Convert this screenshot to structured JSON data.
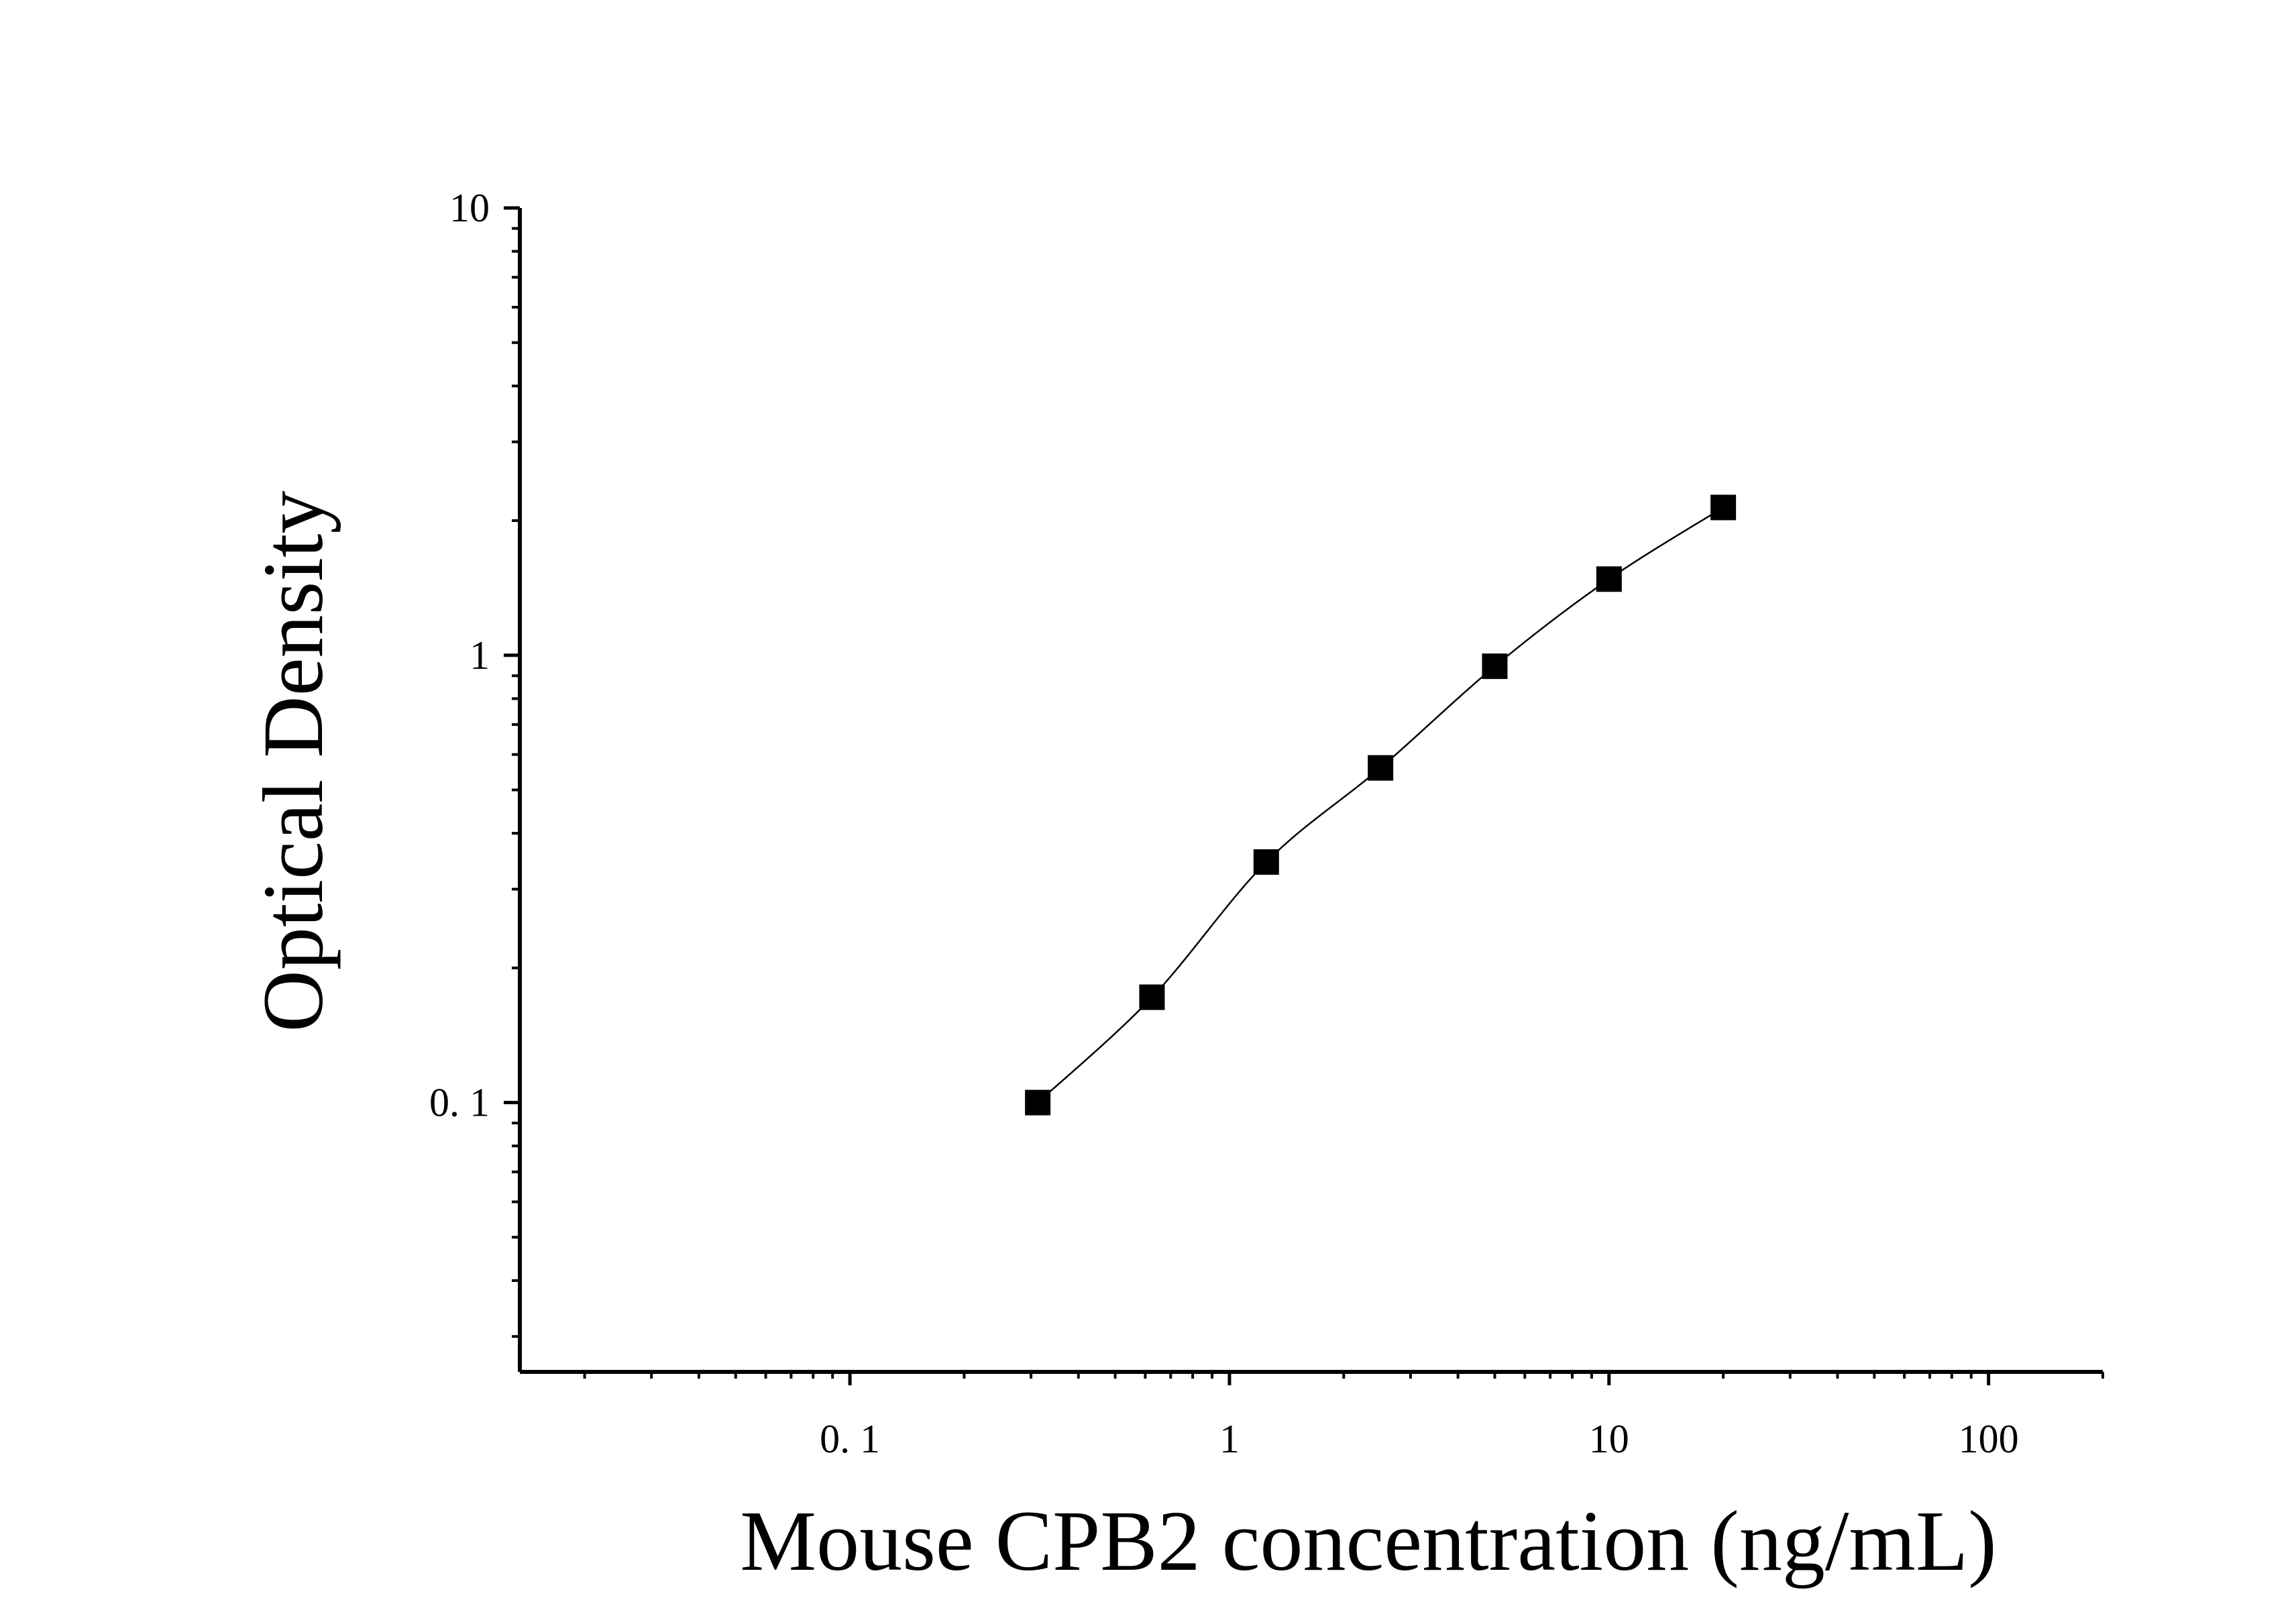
{
  "chart_data": {
    "type": "scatter",
    "title": "",
    "xlabel": "Mouse CPB2 concentration (ng/mL)",
    "ylabel": "Optical Density",
    "xscale": "log",
    "yscale": "log",
    "xlim": [
      0.0135,
      200
    ],
    "ylim": [
      0.025,
      10
    ],
    "x_ticks": [
      {
        "value": 0.1,
        "label": "0. 1"
      },
      {
        "value": 1,
        "label": "1"
      },
      {
        "value": 10,
        "label": "10"
      },
      {
        "value": 100,
        "label": "100"
      }
    ],
    "y_ticks": [
      {
        "value": 0.1,
        "label": "0. 1"
      },
      {
        "value": 1,
        "label": "1"
      },
      {
        "value": 10,
        "label": "10"
      }
    ],
    "grid": false,
    "legend": "none",
    "marker": "square",
    "fitted_curve": true,
    "colors": {
      "axis": "#000000",
      "marker": "#000000",
      "curve": "#000000"
    },
    "series": [
      {
        "x": [
          0.3125,
          0.625,
          1.25,
          2.5,
          5,
          10,
          20
        ],
        "y": [
          0.1,
          0.172,
          0.345,
          0.56,
          0.945,
          1.48,
          2.14
        ]
      }
    ]
  }
}
